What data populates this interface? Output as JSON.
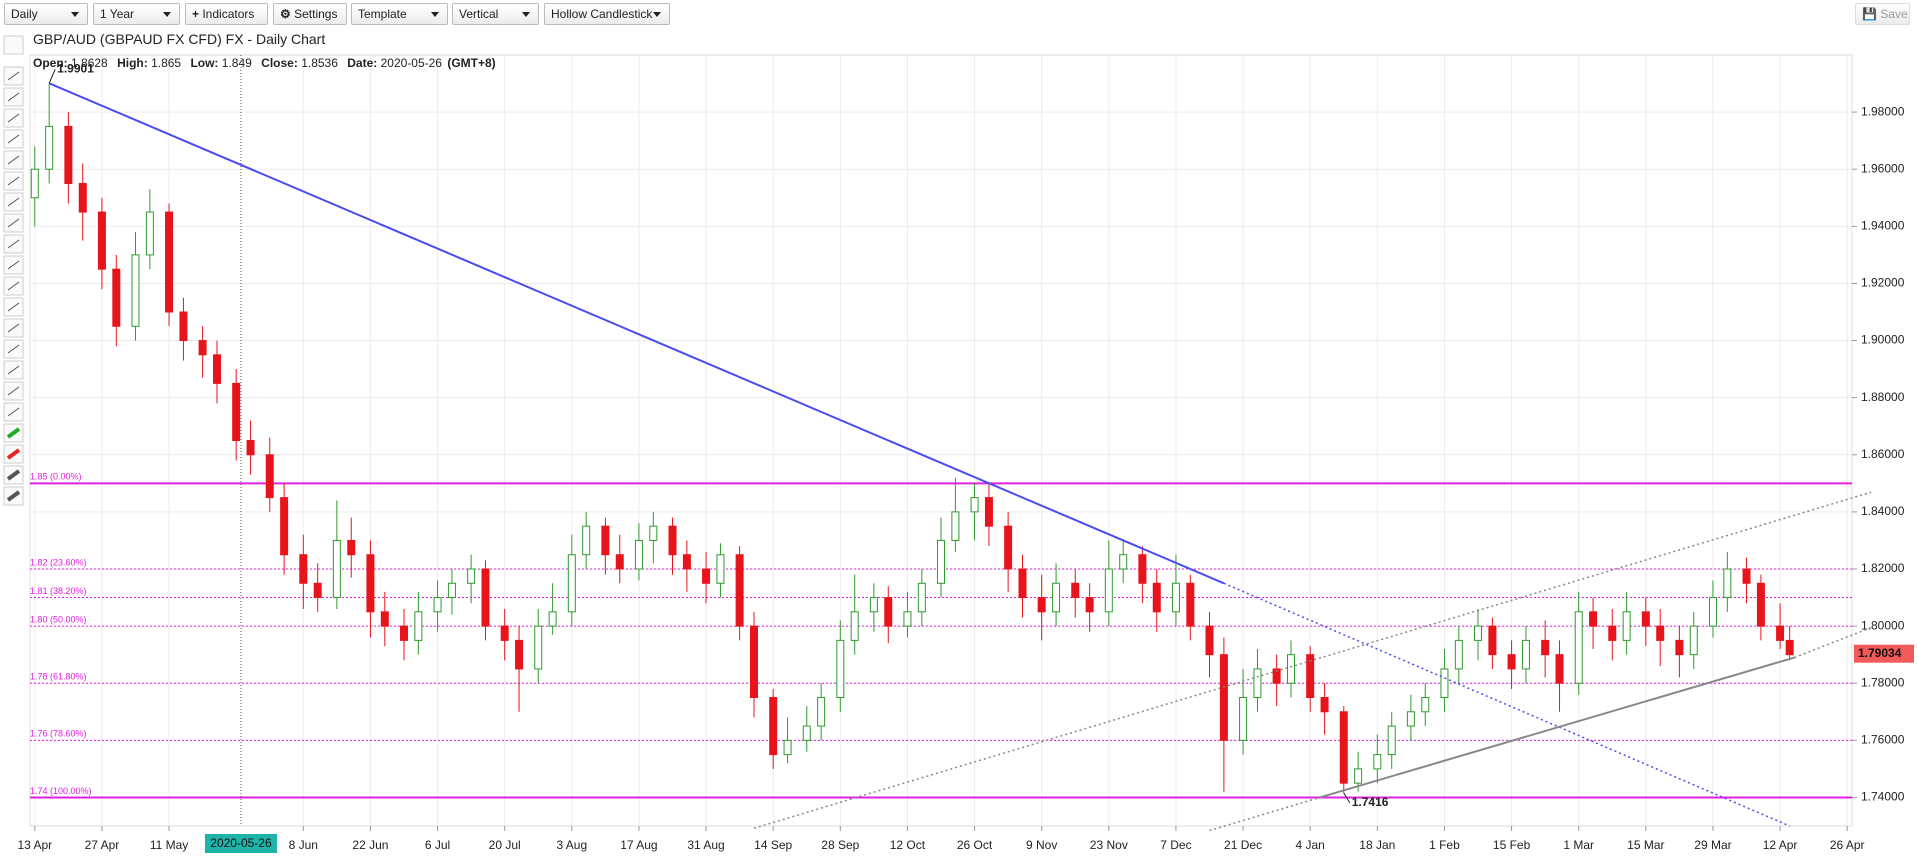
{
  "toolbar": {
    "interval": "Daily",
    "range": "1 Year",
    "indicators": "Indicators",
    "settings": "Settings",
    "template": "Template",
    "orientation": "Vertical",
    "chart_style": "Hollow Candlestick",
    "save": "Save"
  },
  "chart_data": {
    "type": "candlestick",
    "title": "GBP/AUD (GBPAUD FX CFD) FX - Daily Chart",
    "header": {
      "open_label": "Open:",
      "open": 1.8628,
      "high_label": "High:",
      "high": 1.865,
      "low_label": "Low:",
      "low": 1.849,
      "close_label": "Close:",
      "close": 1.8536,
      "date_label": "Date:",
      "date": "2020-05-26",
      "timezone": "(GMT+8)"
    },
    "x": [
      "2020-04-13",
      "2020-04-16",
      "2020-04-20",
      "2020-04-23",
      "2020-04-27",
      "2020-04-30",
      "2020-05-04",
      "2020-05-07",
      "2020-05-11",
      "2020-05-14",
      "2020-05-18",
      "2020-05-21",
      "2020-05-25",
      "2020-05-28",
      "2020-06-01",
      "2020-06-04",
      "2020-06-08",
      "2020-06-11",
      "2020-06-15",
      "2020-06-18",
      "2020-06-22",
      "2020-06-25",
      "2020-06-29",
      "2020-07-02",
      "2020-07-06",
      "2020-07-09",
      "2020-07-13",
      "2020-07-16",
      "2020-07-20",
      "2020-07-23",
      "2020-07-27",
      "2020-07-30",
      "2020-08-03",
      "2020-08-06",
      "2020-08-10",
      "2020-08-13",
      "2020-08-17",
      "2020-08-20",
      "2020-08-24",
      "2020-08-27",
      "2020-08-31",
      "2020-09-03",
      "2020-09-07",
      "2020-09-10",
      "2020-09-14",
      "2020-09-17",
      "2020-09-21",
      "2020-09-24",
      "2020-09-28",
      "2020-10-01",
      "2020-10-05",
      "2020-10-08",
      "2020-10-12",
      "2020-10-15",
      "2020-10-19",
      "2020-10-22",
      "2020-10-26",
      "2020-10-29",
      "2020-11-02",
      "2020-11-05",
      "2020-11-09",
      "2020-11-12",
      "2020-11-16",
      "2020-11-19",
      "2020-11-23",
      "2020-11-26",
      "2020-11-30",
      "2020-12-03",
      "2020-12-07",
      "2020-12-10",
      "2020-12-14",
      "2020-12-17",
      "2020-12-21",
      "2020-12-24",
      "2020-12-28",
      "2020-12-31",
      "2021-01-04",
      "2021-01-07",
      "2021-01-11",
      "2021-01-14",
      "2021-01-18",
      "2021-01-21",
      "2021-01-25",
      "2021-01-28",
      "2021-02-01",
      "2021-02-04",
      "2021-02-08",
      "2021-02-11",
      "2021-02-15",
      "2021-02-18",
      "2021-02-22",
      "2021-02-25",
      "2021-03-01",
      "2021-03-04",
      "2021-03-08",
      "2021-03-11",
      "2021-03-15",
      "2021-03-18",
      "2021-03-22",
      "2021-03-25",
      "2021-03-29",
      "2021-04-01",
      "2021-04-05",
      "2021-04-08",
      "2021-04-12",
      "2021-04-14"
    ],
    "open": [
      1.95,
      1.96,
      1.975,
      1.955,
      1.945,
      1.925,
      1.905,
      1.93,
      1.945,
      1.91,
      1.9,
      1.895,
      1.885,
      1.865,
      1.86,
      1.845,
      1.825,
      1.815,
      1.81,
      1.83,
      1.825,
      1.805,
      1.8,
      1.795,
      1.805,
      1.81,
      1.815,
      1.82,
      1.8,
      1.795,
      1.785,
      1.8,
      1.805,
      1.825,
      1.835,
      1.825,
      1.82,
      1.83,
      1.835,
      1.825,
      1.82,
      1.815,
      1.825,
      1.8,
      1.775,
      1.755,
      1.76,
      1.765,
      1.775,
      1.795,
      1.805,
      1.81,
      1.8,
      1.805,
      1.815,
      1.83,
      1.84,
      1.845,
      1.835,
      1.82,
      1.81,
      1.805,
      1.815,
      1.81,
      1.805,
      1.82,
      1.825,
      1.815,
      1.805,
      1.815,
      1.8,
      1.79,
      1.76,
      1.775,
      1.785,
      1.78,
      1.79,
      1.775,
      1.77,
      1.745,
      1.75,
      1.755,
      1.765,
      1.77,
      1.775,
      1.785,
      1.795,
      1.8,
      1.79,
      1.785,
      1.795,
      1.79,
      1.78,
      1.805,
      1.8,
      1.795,
      1.805,
      1.8,
      1.795,
      1.79,
      1.8,
      1.81,
      1.82,
      1.815,
      1.8,
      1.795
    ],
    "high": [
      1.968,
      1.99,
      1.98,
      1.962,
      1.95,
      1.93,
      1.938,
      1.953,
      1.948,
      1.915,
      1.905,
      1.9,
      1.89,
      1.872,
      1.866,
      1.85,
      1.832,
      1.822,
      1.844,
      1.838,
      1.83,
      1.812,
      1.806,
      1.812,
      1.816,
      1.82,
      1.825,
      1.823,
      1.806,
      1.8,
      1.806,
      1.815,
      1.832,
      1.84,
      1.838,
      1.832,
      1.836,
      1.84,
      1.838,
      1.83,
      1.826,
      1.829,
      1.828,
      1.805,
      1.778,
      1.768,
      1.772,
      1.78,
      1.802,
      1.818,
      1.815,
      1.814,
      1.812,
      1.82,
      1.838,
      1.852,
      1.85,
      1.85,
      1.84,
      1.825,
      1.818,
      1.822,
      1.82,
      1.815,
      1.83,
      1.83,
      1.828,
      1.82,
      1.825,
      1.818,
      1.805,
      1.796,
      1.785,
      1.792,
      1.79,
      1.795,
      1.793,
      1.78,
      1.772,
      1.756,
      1.762,
      1.77,
      1.776,
      1.78,
      1.792,
      1.8,
      1.806,
      1.803,
      1.795,
      1.8,
      1.802,
      1.795,
      1.812,
      1.81,
      1.806,
      1.812,
      1.81,
      1.806,
      1.8,
      1.805,
      1.816,
      1.826,
      1.824,
      1.818,
      1.808,
      1.8
    ],
    "low": [
      1.94,
      1.955,
      1.948,
      1.935,
      1.918,
      1.898,
      1.9,
      1.925,
      1.905,
      1.893,
      1.887,
      1.878,
      1.858,
      1.853,
      1.84,
      1.818,
      1.806,
      1.805,
      1.806,
      1.817,
      1.796,
      1.793,
      1.788,
      1.79,
      1.798,
      1.804,
      1.808,
      1.795,
      1.788,
      1.77,
      1.78,
      1.797,
      1.8,
      1.82,
      1.818,
      1.815,
      1.816,
      1.822,
      1.818,
      1.812,
      1.808,
      1.81,
      1.795,
      1.768,
      1.75,
      1.752,
      1.756,
      1.76,
      1.77,
      1.79,
      1.798,
      1.794,
      1.796,
      1.8,
      1.81,
      1.826,
      1.83,
      1.828,
      1.812,
      1.803,
      1.795,
      1.8,
      1.803,
      1.798,
      1.8,
      1.815,
      1.808,
      1.798,
      1.8,
      1.795,
      1.782,
      1.742,
      1.755,
      1.77,
      1.772,
      1.775,
      1.77,
      1.762,
      1.7416,
      1.742,
      1.745,
      1.75,
      1.76,
      1.765,
      1.77,
      1.78,
      1.788,
      1.785,
      1.778,
      1.78,
      1.782,
      1.77,
      1.776,
      1.792,
      1.788,
      1.79,
      1.793,
      1.786,
      1.782,
      1.785,
      1.796,
      1.805,
      1.808,
      1.795,
      1.792,
      1.788
    ],
    "close": [
      1.96,
      1.975,
      1.955,
      1.945,
      1.925,
      1.905,
      1.93,
      1.945,
      1.91,
      1.9,
      1.895,
      1.885,
      1.865,
      1.86,
      1.845,
      1.825,
      1.815,
      1.81,
      1.83,
      1.825,
      1.805,
      1.8,
      1.795,
      1.805,
      1.81,
      1.815,
      1.82,
      1.8,
      1.795,
      1.785,
      1.8,
      1.805,
      1.825,
      1.835,
      1.825,
      1.82,
      1.83,
      1.835,
      1.825,
      1.82,
      1.815,
      1.825,
      1.8,
      1.775,
      1.755,
      1.76,
      1.765,
      1.775,
      1.795,
      1.805,
      1.81,
      1.8,
      1.805,
      1.815,
      1.83,
      1.84,
      1.845,
      1.835,
      1.82,
      1.81,
      1.805,
      1.815,
      1.81,
      1.805,
      1.82,
      1.825,
      1.815,
      1.805,
      1.815,
      1.8,
      1.79,
      1.76,
      1.775,
      1.785,
      1.78,
      1.79,
      1.775,
      1.77,
      1.745,
      1.75,
      1.755,
      1.765,
      1.77,
      1.775,
      1.785,
      1.795,
      1.8,
      1.79,
      1.785,
      1.795,
      1.79,
      1.78,
      1.805,
      1.8,
      1.795,
      1.805,
      1.8,
      1.795,
      1.79,
      1.8,
      1.81,
      1.82,
      1.815,
      1.8,
      1.795,
      1.79
    ],
    "up_color": "#2e9b2e",
    "down_color": "#e8141c",
    "xlim": [
      "2020-04-12",
      "2021-04-27"
    ],
    "xticks": [
      {
        "value": "2020-04-13",
        "label": "13 Apr"
      },
      {
        "value": "2020-04-27",
        "label": "27 Apr"
      },
      {
        "value": "2020-05-11",
        "label": "11 May"
      },
      {
        "value": "2020-06-08",
        "label": "8 Jun"
      },
      {
        "value": "2020-06-22",
        "label": "22 Jun"
      },
      {
        "value": "2020-07-06",
        "label": "6 Jul"
      },
      {
        "value": "2020-07-20",
        "label": "20 Jul"
      },
      {
        "value": "2020-08-03",
        "label": "3 Aug"
      },
      {
        "value": "2020-08-17",
        "label": "17 Aug"
      },
      {
        "value": "2020-08-31",
        "label": "31 Aug"
      },
      {
        "value": "2020-09-14",
        "label": "14 Sep"
      },
      {
        "value": "2020-09-28",
        "label": "28 Sep"
      },
      {
        "value": "2020-10-12",
        "label": "12 Oct"
      },
      {
        "value": "2020-10-26",
        "label": "26 Oct"
      },
      {
        "value": "2020-11-09",
        "label": "9 Nov"
      },
      {
        "value": "2020-11-23",
        "label": "23 Nov"
      },
      {
        "value": "2020-12-07",
        "label": "7 Dec"
      },
      {
        "value": "2020-12-21",
        "label": "21 Dec"
      },
      {
        "value": "2021-01-04",
        "label": "4 Jan"
      },
      {
        "value": "2021-01-18",
        "label": "18 Jan"
      },
      {
        "value": "2021-02-01",
        "label": "1 Feb"
      },
      {
        "value": "2021-02-15",
        "label": "15 Feb"
      },
      {
        "value": "2021-03-01",
        "label": "1 Mar"
      },
      {
        "value": "2021-03-15",
        "label": "15 Mar"
      },
      {
        "value": "2021-03-29",
        "label": "29 Mar"
      },
      {
        "value": "2021-04-12",
        "label": "12 Apr"
      },
      {
        "value": "2021-04-26",
        "label": "26 Apr"
      }
    ],
    "ylim": [
      1.73,
      2.0
    ],
    "yticks": [
      {
        "value": 1.74,
        "label": "1.74000"
      },
      {
        "value": 1.76,
        "label": "1.76000"
      },
      {
        "value": 1.78,
        "label": "1.78000"
      },
      {
        "value": 1.8,
        "label": "1.80000"
      },
      {
        "value": 1.82,
        "label": "1.82000"
      },
      {
        "value": 1.84,
        "label": "1.84000"
      },
      {
        "value": 1.86,
        "label": "1.86000"
      },
      {
        "value": 1.88,
        "label": "1.88000"
      },
      {
        "value": 1.9,
        "label": "1.90000"
      },
      {
        "value": 1.92,
        "label": "1.92000"
      },
      {
        "value": 1.94,
        "label": "1.94000"
      },
      {
        "value": 1.96,
        "label": "1.96000"
      },
      {
        "value": 1.98,
        "label": "1.98000"
      }
    ],
    "grid": true,
    "levels": [
      {
        "value": 1.85,
        "label": "1.85 (0.00%)",
        "style": "solid"
      },
      {
        "value": 1.82,
        "label": "1.82 (23.60%)",
        "style": "dotted"
      },
      {
        "value": 1.81,
        "label": "1.81 (38.20%)",
        "style": "dotted"
      },
      {
        "value": 1.8,
        "label": "1.80 (50.00%)",
        "style": "dotted"
      },
      {
        "value": 1.78,
        "label": "1.78 (61.80%)",
        "style": "dotted"
      },
      {
        "value": 1.76,
        "label": "1.76 (78.60%)",
        "style": "dotted"
      },
      {
        "value": 1.74,
        "label": "1.74 (100.00%)",
        "style": "solid"
      }
    ],
    "levels_color": "#e020e0",
    "trendlines": [
      {
        "x": [
          "2020-04-16",
          "2020-12-17"
        ],
        "y": [
          1.9901,
          1.815
        ],
        "style": "solid",
        "color": "#4b4bf2"
      },
      {
        "x": [
          "2020-12-17",
          "2021-04-14"
        ],
        "y": [
          1.815,
          1.73
        ],
        "style": "dotted",
        "color": "#4b4bf2"
      },
      {
        "x": [
          "2020-09-10",
          "2021-05-01"
        ],
        "y": [
          1.7292,
          1.8469
        ],
        "style": "dotted",
        "color": "#888888"
      },
      {
        "x": [
          "2020-12-14",
          "2021-01-06"
        ],
        "y": [
          1.7284,
          1.74
        ],
        "style": "dotted",
        "color": "#888888"
      },
      {
        "x": [
          "2021-01-06",
          "2021-04-15"
        ],
        "y": [
          1.74,
          1.789
        ],
        "style": "solid",
        "color": "#888888"
      },
      {
        "x": [
          "2021-04-15",
          "2021-05-01"
        ],
        "y": [
          1.789,
          1.7995
        ],
        "style": "dotted",
        "color": "#888888"
      }
    ],
    "point_labels": [
      {
        "x": "2020-04-16",
        "y": 1.9901
      },
      {
        "x": "2021-01-11",
        "y": 1.7416
      }
    ],
    "crosshair": "2020-05-26",
    "last_price": 1.79034
  }
}
